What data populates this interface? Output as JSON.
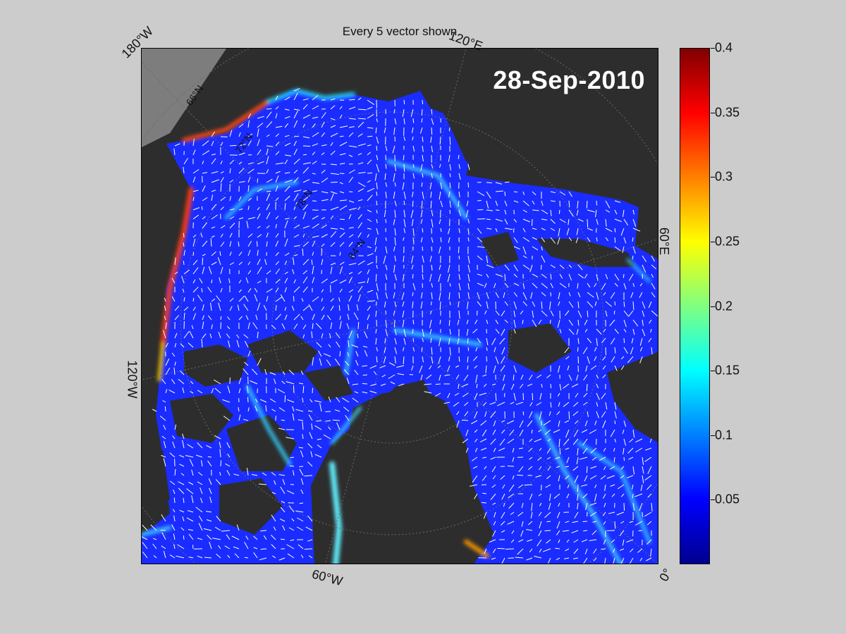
{
  "figure": {
    "title": "Every 5 vector shown",
    "date": "28-Sep-2010"
  },
  "longitude_labels": [
    {
      "text": "180°W"
    },
    {
      "text": "120°E"
    },
    {
      "text": "60°E"
    },
    {
      "text": "120°W"
    },
    {
      "text": "60°W"
    },
    {
      "text": "0°"
    }
  ],
  "latitude_labels": [
    "66°N",
    "72°N",
    "78°N",
    "84°N"
  ],
  "colorbar": {
    "colormap": "jet",
    "min": 0,
    "max": 0.4,
    "ticks": [
      "0.05",
      "0.1",
      "0.15",
      "0.2",
      "0.25",
      "0.3",
      "0.35",
      "0.4"
    ]
  },
  "colors": {
    "background": "#cccccc",
    "land": "#2d2d2d",
    "landmask_shelf": "#8a8a8a",
    "ice_low": "#1028ff",
    "ice_mid": "#20c8ff",
    "ice_high": "#ff2000",
    "vectors": "#ffffff"
  }
}
